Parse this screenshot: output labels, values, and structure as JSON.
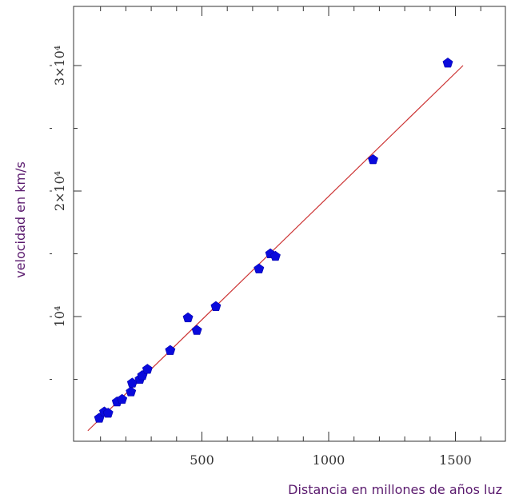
{
  "chart_data": {
    "type": "scatter",
    "title": "",
    "xlabel": "Distancia en millones de años luz",
    "ylabel": "velocidad en km/s",
    "xlim": [
      0,
      1650
    ],
    "ylim": [
      0,
      35000
    ],
    "grid": false,
    "x_ticks": [
      {
        "value": 500,
        "label": "500"
      },
      {
        "value": 1000,
        "label": "1000"
      },
      {
        "value": 1500,
        "label": "1500"
      }
    ],
    "y_ticks": [
      {
        "value": 10000,
        "label": "10⁴"
      },
      {
        "value": 20000,
        "label": "2×10⁴"
      },
      {
        "value": 30000,
        "label": "3×10⁴"
      }
    ],
    "colors": {
      "points": "#0a0adc",
      "fit_line": "#cc3333",
      "axes": "#333333",
      "labels": "#5a1a6e"
    },
    "series": [
      {
        "marker": "pentagon",
        "points": [
          {
            "x": 95,
            "y": 1900
          },
          {
            "x": 115,
            "y": 2400
          },
          {
            "x": 130,
            "y": 2300
          },
          {
            "x": 165,
            "y": 3200
          },
          {
            "x": 185,
            "y": 3400
          },
          {
            "x": 220,
            "y": 4000
          },
          {
            "x": 225,
            "y": 4700
          },
          {
            "x": 255,
            "y": 5000
          },
          {
            "x": 265,
            "y": 5300
          },
          {
            "x": 285,
            "y": 5800
          },
          {
            "x": 375,
            "y": 7300
          },
          {
            "x": 445,
            "y": 9900
          },
          {
            "x": 480,
            "y": 8900
          },
          {
            "x": 555,
            "y": 10800
          },
          {
            "x": 725,
            "y": 13800
          },
          {
            "x": 770,
            "y": 15000
          },
          {
            "x": 790,
            "y": 14800
          },
          {
            "x": 1175,
            "y": 22500
          },
          {
            "x": 1470,
            "y": 30200
          }
        ]
      }
    ],
    "fit_line": {
      "x": [
        50,
        1530
      ],
      "y": [
        900,
        30000
      ]
    }
  }
}
